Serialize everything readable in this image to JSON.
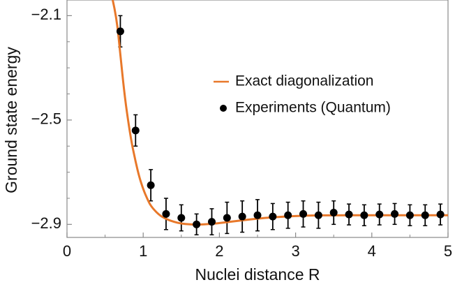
{
  "chart_data": {
    "type": "scatter",
    "title": "",
    "xlabel": "Nuclei distance R",
    "ylabel": "Ground state energy",
    "xlim": [
      0,
      5
    ],
    "ylim": [
      -2.95,
      -2.04
    ],
    "x_ticks": [
      0,
      1,
      2,
      3,
      4,
      5
    ],
    "x_tick_labels": [
      "0",
      "1",
      "2",
      "3",
      "4",
      "5"
    ],
    "y_ticks": [
      -2.1,
      -2.5,
      -2.9
    ],
    "y_tick_labels": [
      "−2.1",
      "−2.5",
      "−2.9"
    ],
    "legend_position": "center-right",
    "grid": false,
    "series": [
      {
        "name": "Exact diagonalization",
        "kind": "line",
        "color": "#e8782a",
        "x": [
          0.6,
          0.65,
          0.7,
          0.75,
          0.8,
          0.85,
          0.9,
          0.95,
          1.0,
          1.05,
          1.1,
          1.2,
          1.3,
          1.4,
          1.5,
          1.6,
          1.7,
          1.8,
          1.9,
          2.0,
          2.2,
          2.4,
          2.6,
          2.8,
          3.0,
          3.2,
          3.5,
          4.0,
          4.5,
          5.0
        ],
        "y": [
          -2.033,
          -2.105,
          -2.25,
          -2.39,
          -2.5,
          -2.59,
          -2.66,
          -2.72,
          -2.765,
          -2.8,
          -2.83,
          -2.862,
          -2.88,
          -2.89,
          -2.897,
          -2.9,
          -2.901,
          -2.9,
          -2.898,
          -2.895,
          -2.888,
          -2.881,
          -2.875,
          -2.871,
          -2.868,
          -2.866,
          -2.865,
          -2.865,
          -2.865,
          -2.865
        ]
      },
      {
        "name": "Experiments (Quantum)",
        "kind": "scatter",
        "color": "#000000",
        "x": [
          0.7,
          0.9,
          1.1,
          1.3,
          1.5,
          1.7,
          1.9,
          2.1,
          2.3,
          2.5,
          2.7,
          2.9,
          3.1,
          3.3,
          3.5,
          3.7,
          3.9,
          4.1,
          4.3,
          4.5,
          4.7,
          4.9
        ],
        "y": [
          -2.16,
          -2.54,
          -2.75,
          -2.86,
          -2.875,
          -2.9,
          -2.89,
          -2.875,
          -2.87,
          -2.865,
          -2.87,
          -2.865,
          -2.86,
          -2.865,
          -2.855,
          -2.862,
          -2.865,
          -2.862,
          -2.86,
          -2.865,
          -2.865,
          -2.862
        ],
        "error": [
          0.06,
          0.06,
          0.06,
          0.06,
          0.05,
          0.04,
          0.05,
          0.06,
          0.06,
          0.06,
          0.05,
          0.05,
          0.05,
          0.05,
          0.045,
          0.04,
          0.04,
          0.04,
          0.04,
          0.04,
          0.04,
          0.04
        ]
      }
    ]
  }
}
